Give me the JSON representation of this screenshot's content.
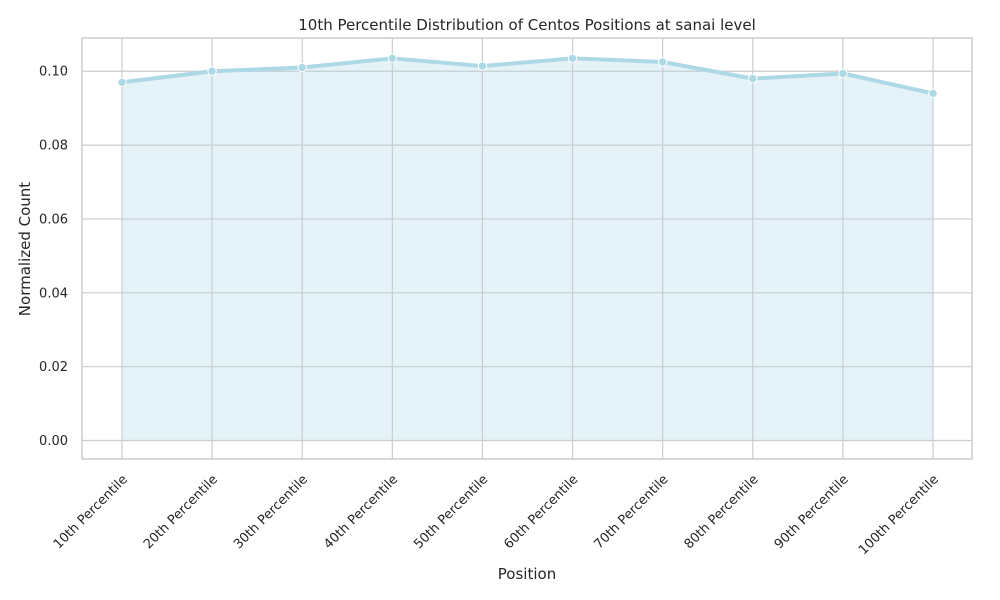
{
  "chart_data": {
    "type": "area",
    "title": "10th Percentile Distribution of Centos Positions at sanai level",
    "xlabel": "Position",
    "ylabel": "Normalized Count",
    "categories": [
      "10th Percentile",
      "20th Percentile",
      "30th Percentile",
      "40th Percentile",
      "50th Percentile",
      "60th Percentile",
      "70th Percentile",
      "80th Percentile",
      "90th Percentile",
      "100th Percentile"
    ],
    "values": [
      0.097,
      0.1,
      0.101,
      0.1035,
      0.1014,
      0.1035,
      0.1025,
      0.098,
      0.0994,
      0.094
    ],
    "ylim": [
      -0.005,
      0.109
    ],
    "yticks": [
      0.0,
      0.02,
      0.04,
      0.06,
      0.08,
      0.1
    ],
    "ytick_labels": [
      "0.00",
      "0.02",
      "0.04",
      "0.06",
      "0.08",
      "0.10"
    ],
    "grid": true,
    "legend": "none",
    "colors": {
      "line": "#add8e6",
      "fill": "#add8e6",
      "marker_stroke": "#ffffff",
      "grid": "#cccccc",
      "frame": "#cccccc",
      "text": "#262626"
    }
  }
}
